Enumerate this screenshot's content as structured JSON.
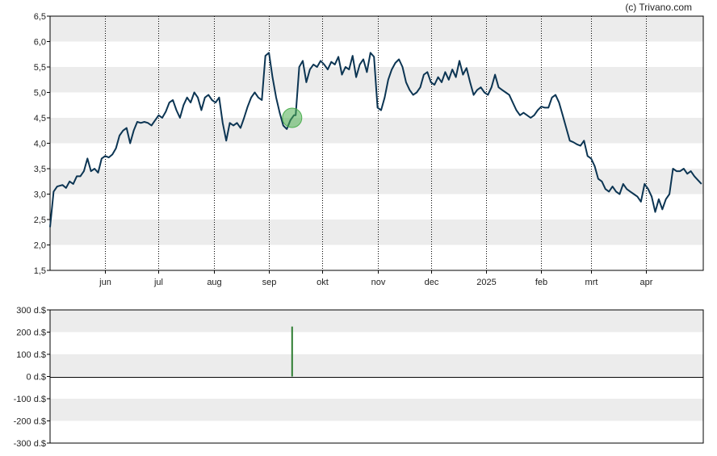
{
  "copyright": "(c) Trivano.com",
  "colors": {
    "band": "#ececec",
    "line": "#0c3553",
    "marker": "#4caf50",
    "insider_bar": "#2e7d32",
    "axis": "#000000"
  },
  "chart_data": [
    {
      "type": "line",
      "name": "price",
      "ylim": [
        1.5,
        6.5
      ],
      "yticks": [
        1.5,
        2.0,
        2.5,
        3.0,
        3.5,
        4.0,
        4.5,
        5.0,
        5.5,
        6.0,
        6.5
      ],
      "ytick_labels": [
        "1,5",
        "2,0",
        "2,5",
        "3,0",
        "3,5",
        "4,0",
        "4,5",
        "5,0",
        "5,5",
        "6,0",
        "6,5"
      ],
      "x_labels": [
        "jun",
        "jul",
        "aug",
        "sep",
        "okt",
        "nov",
        "dec",
        "2025",
        "feb",
        "mrt",
        "apr"
      ],
      "x_dates": [
        "2024-06-01",
        "2024-07-01",
        "2024-08-01",
        "2024-09-01",
        "2024-10-01",
        "2024-11-01",
        "2024-12-01",
        "2025-01-01",
        "2025-02-01",
        "2025-03-01",
        "2025-04-01"
      ],
      "x_range": [
        "2024-05-01",
        "2025-05-03"
      ],
      "grid": "dotted vertical at months, alternating horizontal bands",
      "series": [
        {
          "points": [
            [
              "2024-05-01",
              2.35
            ],
            [
              "2024-05-03",
              3.05
            ],
            [
              "2024-05-05",
              3.15
            ],
            [
              "2024-05-08",
              3.18
            ],
            [
              "2024-05-10",
              3.12
            ],
            [
              "2024-05-12",
              3.25
            ],
            [
              "2024-05-14",
              3.2
            ],
            [
              "2024-05-16",
              3.35
            ],
            [
              "2024-05-18",
              3.35
            ],
            [
              "2024-05-20",
              3.45
            ],
            [
              "2024-05-22",
              3.7
            ],
            [
              "2024-05-24",
              3.45
            ],
            [
              "2024-05-26",
              3.5
            ],
            [
              "2024-05-28",
              3.42
            ],
            [
              "2024-05-30",
              3.7
            ],
            [
              "2024-06-01",
              3.75
            ],
            [
              "2024-06-03",
              3.72
            ],
            [
              "2024-06-05",
              3.78
            ],
            [
              "2024-06-07",
              3.9
            ],
            [
              "2024-06-09",
              4.15
            ],
            [
              "2024-06-11",
              4.25
            ],
            [
              "2024-06-13",
              4.3
            ],
            [
              "2024-06-15",
              4.0
            ],
            [
              "2024-06-17",
              4.25
            ],
            [
              "2024-06-19",
              4.42
            ],
            [
              "2024-06-21",
              4.4
            ],
            [
              "2024-06-23",
              4.42
            ],
            [
              "2024-06-25",
              4.4
            ],
            [
              "2024-06-27",
              4.35
            ],
            [
              "2024-06-29",
              4.45
            ],
            [
              "2024-07-01",
              4.55
            ],
            [
              "2024-07-03",
              4.5
            ],
            [
              "2024-07-05",
              4.62
            ],
            [
              "2024-07-07",
              4.8
            ],
            [
              "2024-07-09",
              4.85
            ],
            [
              "2024-07-11",
              4.65
            ],
            [
              "2024-07-13",
              4.5
            ],
            [
              "2024-07-15",
              4.75
            ],
            [
              "2024-07-17",
              4.9
            ],
            [
              "2024-07-19",
              4.8
            ],
            [
              "2024-07-21",
              5.0
            ],
            [
              "2024-07-23",
              4.9
            ],
            [
              "2024-07-25",
              4.65
            ],
            [
              "2024-07-27",
              4.9
            ],
            [
              "2024-07-29",
              4.95
            ],
            [
              "2024-07-31",
              4.85
            ],
            [
              "2024-08-02",
              4.8
            ],
            [
              "2024-08-04",
              4.9
            ],
            [
              "2024-08-06",
              4.4
            ],
            [
              "2024-08-08",
              4.05
            ],
            [
              "2024-08-10",
              4.4
            ],
            [
              "2024-08-12",
              4.35
            ],
            [
              "2024-08-14",
              4.4
            ],
            [
              "2024-08-16",
              4.3
            ],
            [
              "2024-08-18",
              4.5
            ],
            [
              "2024-08-20",
              4.72
            ],
            [
              "2024-08-22",
              4.9
            ],
            [
              "2024-08-24",
              5.0
            ],
            [
              "2024-08-26",
              4.9
            ],
            [
              "2024-08-28",
              4.85
            ],
            [
              "2024-08-30",
              5.72
            ],
            [
              "2024-09-01",
              5.78
            ],
            [
              "2024-09-03",
              5.3
            ],
            [
              "2024-09-05",
              4.9
            ],
            [
              "2024-09-07",
              4.6
            ],
            [
              "2024-09-09",
              4.35
            ],
            [
              "2024-09-11",
              4.28
            ],
            [
              "2024-09-13",
              4.45
            ],
            [
              "2024-09-15",
              4.55
            ],
            [
              "2024-09-16",
              4.55
            ],
            [
              "2024-09-18",
              5.5
            ],
            [
              "2024-09-20",
              5.62
            ],
            [
              "2024-09-22",
              5.2
            ],
            [
              "2024-09-24",
              5.45
            ],
            [
              "2024-09-26",
              5.55
            ],
            [
              "2024-09-28",
              5.5
            ],
            [
              "2024-09-30",
              5.62
            ],
            [
              "2024-10-02",
              5.55
            ],
            [
              "2024-10-04",
              5.45
            ],
            [
              "2024-10-06",
              5.6
            ],
            [
              "2024-10-08",
              5.55
            ],
            [
              "2024-10-10",
              5.7
            ],
            [
              "2024-10-12",
              5.35
            ],
            [
              "2024-10-14",
              5.5
            ],
            [
              "2024-10-16",
              5.45
            ],
            [
              "2024-10-18",
              5.72
            ],
            [
              "2024-10-20",
              5.3
            ],
            [
              "2024-10-22",
              5.55
            ],
            [
              "2024-10-24",
              5.65
            ],
            [
              "2024-10-26",
              5.4
            ],
            [
              "2024-10-28",
              5.78
            ],
            [
              "2024-10-30",
              5.7
            ],
            [
              "2024-11-01",
              4.7
            ],
            [
              "2024-11-03",
              4.65
            ],
            [
              "2024-11-05",
              4.9
            ],
            [
              "2024-11-07",
              5.25
            ],
            [
              "2024-11-09",
              5.45
            ],
            [
              "2024-11-11",
              5.58
            ],
            [
              "2024-11-13",
              5.65
            ],
            [
              "2024-11-15",
              5.5
            ],
            [
              "2024-11-17",
              5.2
            ],
            [
              "2024-11-19",
              5.05
            ],
            [
              "2024-11-21",
              4.95
            ],
            [
              "2024-11-23",
              5.0
            ],
            [
              "2024-11-25",
              5.1
            ],
            [
              "2024-11-27",
              5.35
            ],
            [
              "2024-11-29",
              5.4
            ],
            [
              "2024-12-01",
              5.2
            ],
            [
              "2024-12-03",
              5.15
            ],
            [
              "2024-12-05",
              5.3
            ],
            [
              "2024-12-07",
              5.2
            ],
            [
              "2024-12-09",
              5.4
            ],
            [
              "2024-12-11",
              5.25
            ],
            [
              "2024-12-13",
              5.45
            ],
            [
              "2024-12-15",
              5.3
            ],
            [
              "2024-12-17",
              5.62
            ],
            [
              "2024-12-19",
              5.35
            ],
            [
              "2024-12-21",
              5.48
            ],
            [
              "2024-12-23",
              5.2
            ],
            [
              "2024-12-25",
              4.95
            ],
            [
              "2024-12-27",
              5.05
            ],
            [
              "2024-12-29",
              5.1
            ],
            [
              "2024-12-31",
              5.0
            ],
            [
              "2025-01-02",
              4.95
            ],
            [
              "2025-01-04",
              5.1
            ],
            [
              "2025-01-06",
              5.35
            ],
            [
              "2025-01-08",
              5.1
            ],
            [
              "2025-01-10",
              5.05
            ],
            [
              "2025-01-12",
              5.0
            ],
            [
              "2025-01-14",
              4.95
            ],
            [
              "2025-01-16",
              4.8
            ],
            [
              "2025-01-18",
              4.65
            ],
            [
              "2025-01-20",
              4.55
            ],
            [
              "2025-01-22",
              4.6
            ],
            [
              "2025-01-24",
              4.55
            ],
            [
              "2025-01-26",
              4.5
            ],
            [
              "2025-01-28",
              4.55
            ],
            [
              "2025-01-30",
              4.65
            ],
            [
              "2025-02-01",
              4.72
            ],
            [
              "2025-02-03",
              4.7
            ],
            [
              "2025-02-05",
              4.7
            ],
            [
              "2025-02-07",
              4.9
            ],
            [
              "2025-02-09",
              4.95
            ],
            [
              "2025-02-11",
              4.8
            ],
            [
              "2025-02-13",
              4.55
            ],
            [
              "2025-02-15",
              4.3
            ],
            [
              "2025-02-17",
              4.05
            ],
            [
              "2025-02-19",
              4.02
            ],
            [
              "2025-02-21",
              3.98
            ],
            [
              "2025-02-23",
              3.95
            ],
            [
              "2025-02-25",
              4.05
            ],
            [
              "2025-02-27",
              3.75
            ],
            [
              "2025-03-01",
              3.7
            ],
            [
              "2025-03-03",
              3.55
            ],
            [
              "2025-03-05",
              3.3
            ],
            [
              "2025-03-07",
              3.25
            ],
            [
              "2025-03-09",
              3.1
            ],
            [
              "2025-03-11",
              3.05
            ],
            [
              "2025-03-13",
              3.15
            ],
            [
              "2025-03-15",
              3.05
            ],
            [
              "2025-03-17",
              3.0
            ],
            [
              "2025-03-19",
              3.2
            ],
            [
              "2025-03-21",
              3.1
            ],
            [
              "2025-03-23",
              3.05
            ],
            [
              "2025-03-25",
              3.0
            ],
            [
              "2025-03-27",
              2.95
            ],
            [
              "2025-03-29",
              2.85
            ],
            [
              "2025-03-31",
              3.2
            ],
            [
              "2025-04-02",
              3.1
            ],
            [
              "2025-04-04",
              2.95
            ],
            [
              "2025-04-06",
              2.65
            ],
            [
              "2025-04-08",
              2.9
            ],
            [
              "2025-04-10",
              2.7
            ],
            [
              "2025-04-12",
              2.9
            ],
            [
              "2025-04-14",
              3.0
            ],
            [
              "2025-04-16",
              3.5
            ],
            [
              "2025-04-18",
              3.45
            ],
            [
              "2025-04-20",
              3.45
            ],
            [
              "2025-04-22",
              3.5
            ],
            [
              "2025-04-24",
              3.4
            ],
            [
              "2025-04-26",
              3.45
            ],
            [
              "2025-04-28",
              3.35
            ],
            [
              "2025-05-02",
              3.2
            ]
          ]
        }
      ],
      "marker": {
        "date": "2024-09-14",
        "value": 4.5
      }
    },
    {
      "type": "bar",
      "name": "insider-transactions",
      "ylim": [
        -300,
        300
      ],
      "yticks": [
        -300,
        -200,
        -100,
        0,
        100,
        200,
        300
      ],
      "ytick_labels": [
        "-300 d.$",
        "-200 d.$",
        "-100 d.$",
        "0 d.$",
        "100 d.$",
        "200 d.$",
        "300 d.$"
      ],
      "x_range": [
        "2024-05-01",
        "2025-05-03"
      ],
      "bars": [
        {
          "date": "2024-09-14",
          "value": 225
        }
      ]
    }
  ]
}
